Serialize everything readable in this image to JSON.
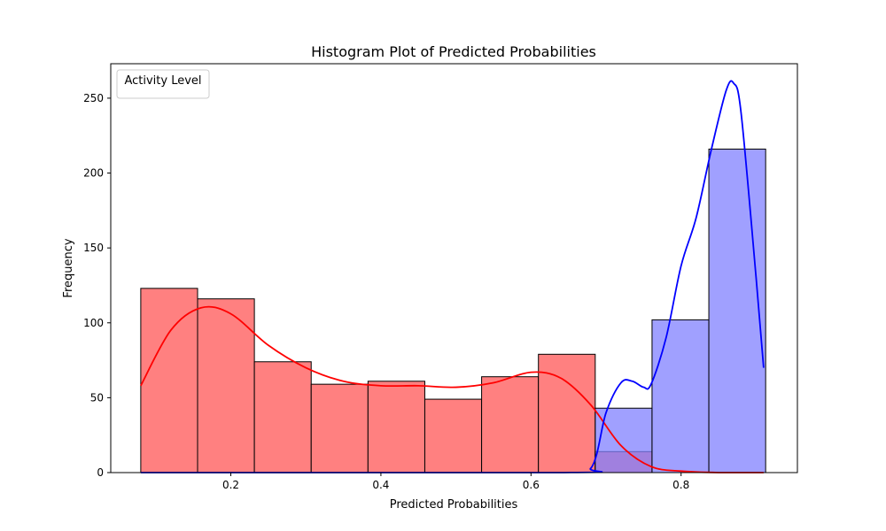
{
  "chart_data": {
    "type": "histogram",
    "title": "Histogram Plot of Predicted Probabilities",
    "xlabel": "Predicted Probabilities",
    "ylabel": "Frequency",
    "xlim": [
      0.04,
      0.955
    ],
    "ylim": [
      0,
      273
    ],
    "xticks": [
      "0.2",
      "0.4",
      "0.6",
      "0.8"
    ],
    "xtick_values": [
      0.2,
      0.4,
      0.6,
      0.8
    ],
    "yticks": [
      "0",
      "50",
      "100",
      "150",
      "200",
      "250"
    ],
    "ytick_values": [
      0,
      50,
      100,
      150,
      200,
      250
    ],
    "bin_edges": [
      0.08,
      0.1557,
      0.2314,
      0.3071,
      0.3828,
      0.4585,
      0.5342,
      0.6099,
      0.6856,
      0.7613,
      0.837,
      0.9127
    ],
    "legend": {
      "title": "Activity Level",
      "entries": [],
      "placement": "top-left"
    },
    "grid": false,
    "series": [
      {
        "color": "#ff0000",
        "fill": "#ff8080",
        "counts": [
          123,
          116,
          74,
          59,
          61,
          49,
          64,
          79,
          14,
          0,
          0
        ],
        "kde": {
          "x": [
            0.08,
            0.12,
            0.16,
            0.2,
            0.25,
            0.3,
            0.35,
            0.4,
            0.45,
            0.5,
            0.55,
            0.6,
            0.64,
            0.68,
            0.72,
            0.76,
            0.8,
            0.85,
            0.91
          ],
          "y": [
            58,
            95,
            110,
            106,
            85,
            70,
            61,
            58,
            58,
            57,
            60,
            67,
            63,
            45,
            18,
            4,
            1,
            0,
            0
          ]
        }
      },
      {
        "color": "#0000ff",
        "fill": "#8080ff",
        "counts": [
          0,
          0,
          0,
          0,
          0,
          0,
          0,
          0,
          43,
          102,
          216
        ],
        "kde": {
          "x": [
            0.08,
            0.64,
            0.68,
            0.7,
            0.72,
            0.735,
            0.75,
            0.76,
            0.78,
            0.8,
            0.82,
            0.84,
            0.86,
            0.87,
            0.88,
            0.9,
            0.91
          ],
          "y": [
            0,
            0,
            3,
            40,
            60,
            61,
            57,
            59,
            90,
            138,
            170,
            215,
            255,
            260,
            240,
            130,
            70
          ]
        }
      }
    ]
  }
}
